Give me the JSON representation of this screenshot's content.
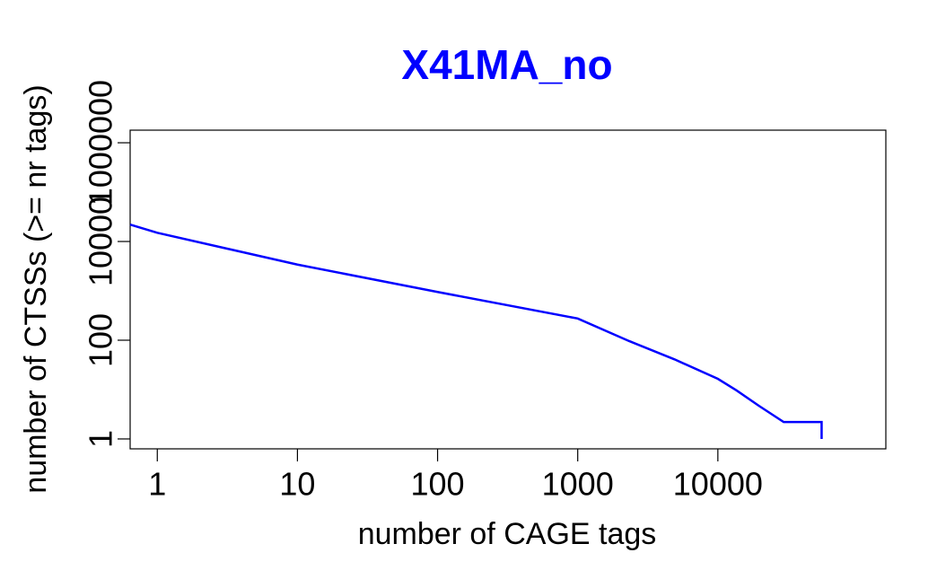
{
  "chart_data": {
    "type": "line",
    "title": "X41MA_no",
    "x_label": "number of CAGE tags",
    "y_label": "number of CTSSs (>= nr tags)",
    "x_log": true,
    "y_log": true,
    "x": [
      0.64,
      1,
      10,
      100,
      1000,
      2330,
      4900,
      10000,
      13600,
      19600,
      29500,
      55000,
      55000
    ],
    "series": [
      {
        "color": "#0000ff",
        "values": [
          22000,
          15000,
          3400,
          950,
          275,
          96,
          41,
          16.5,
          9.6,
          4.7,
          2.2,
          2.2,
          1
        ]
      }
    ],
    "xlim": [
      0.64,
      158000
    ],
    "ylim": [
      0.63,
      1800000
    ],
    "xticks": [
      1,
      10,
      100,
      1000,
      10000
    ],
    "yticks": [
      1,
      100,
      10000,
      1000000
    ]
  }
}
